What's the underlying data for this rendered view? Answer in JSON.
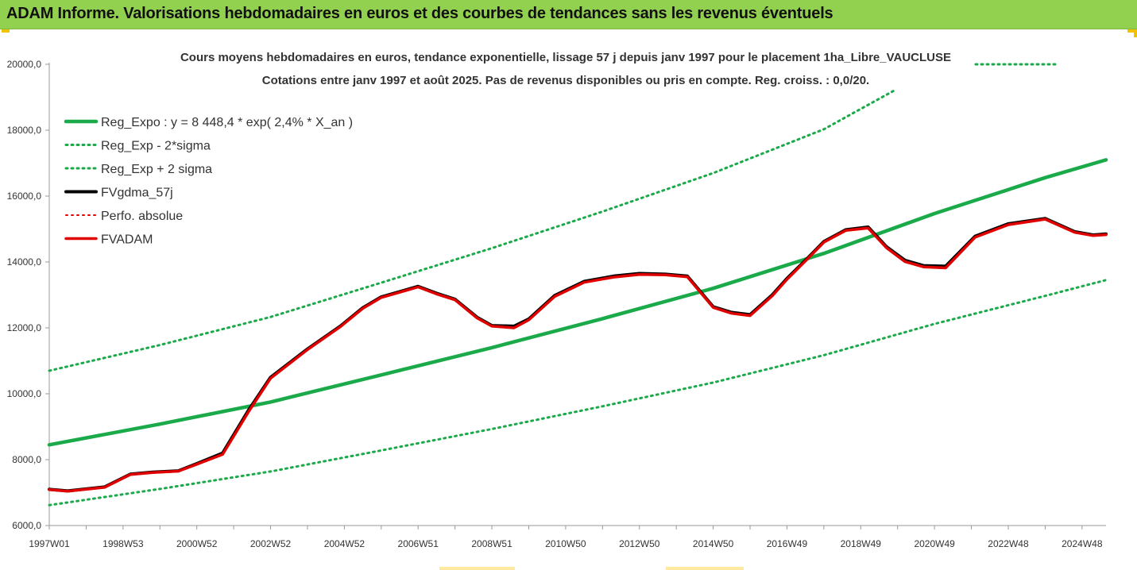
{
  "header": {
    "title": "ADAM Informe. Valorisations hebdomadaires en euros et des courbes de tendances sans les revenus éventuels"
  },
  "colors": {
    "banner": "#92d050",
    "trend": "#1aaa4a",
    "fvgdma": "#000000",
    "perfo": "#e00000",
    "fvadam": "#e00000",
    "corner_accent": "#f2c200"
  },
  "chart_data": {
    "type": "line",
    "title": "",
    "subtitle_lines": [
      "Cours moyens hebdomadaires en euros, tendance exponentielle, lissage 57 j depuis janv 1997 pour le placement 1ha_Libre_VAUCLUSE",
      "Cotations entre janv 1997 et août 2025.  Pas de revenus disponibles ou pris en compte. Reg. croiss. : 0,0/20."
    ],
    "xlabel": "",
    "ylabel": "",
    "x_range_years": [
      1997.0,
      2025.65
    ],
    "ylim": [
      6000,
      20000
    ],
    "y_ticks": [
      "6000,0",
      "8000,0",
      "10000,0",
      "12000,0",
      "14000,0",
      "16000,0",
      "18000,0",
      "20000,0"
    ],
    "y_tick_values": [
      6000,
      8000,
      10000,
      12000,
      14000,
      16000,
      18000,
      20000
    ],
    "x_ticks": [
      "1997W01",
      "1998W53",
      "2000W52",
      "2002W52",
      "2004W52",
      "2006W51",
      "2008W51",
      "2010W50",
      "2012W50",
      "2014W50",
      "2016W49",
      "2018W49",
      "2020W49",
      "2022W48",
      "2024W48"
    ],
    "x_tick_years": [
      1997.0,
      1999.0,
      2001.0,
      2003.0,
      2005.0,
      2007.0,
      2009.0,
      2011.0,
      2013.0,
      2015.0,
      2017.0,
      2019.0,
      2021.0,
      2023.0,
      2025.0
    ],
    "grid": false,
    "legend_position": "top-left",
    "legend": [
      {
        "label": "Reg_Expo : y = 8 448,4 * exp( 2,4% *  X_an )",
        "color": "#1aaa4a",
        "style": "solid"
      },
      {
        "label": "Reg_Exp - 2*sigma",
        "color": "#1aaa4a",
        "style": "dotted"
      },
      {
        "label": "Reg_Exp + 2 sigma",
        "color": "#1aaa4a",
        "style": "dotted"
      },
      {
        "label": "FVgdma_57j",
        "color": "#000000",
        "style": "solid"
      },
      {
        "label": "Perfo. absolue",
        "color": "#e00000",
        "style": "dotted"
      },
      {
        "label": "FVADAM",
        "color": "#e00000",
        "style": "solid"
      }
    ],
    "series": [
      {
        "name": "Reg_Expo : y = 8 448,4 * exp( 2,4% *  X_an )",
        "x": [
          1997.0,
          2000.0,
          2003.0,
          2006.0,
          2009.0,
          2012.0,
          2015.0,
          2018.0,
          2021.0,
          2024.0,
          2025.65
        ],
        "values": [
          8450,
          9080,
          9750,
          10570,
          11400,
          12280,
          13200,
          14260,
          15470,
          16560,
          17100
        ]
      },
      {
        "name": "Reg_Exp - 2*sigma",
        "x": [
          1997.0,
          2000.0,
          2003.0,
          2006.0,
          2009.0,
          2012.0,
          2015.0,
          2018.0,
          2021.0,
          2024.0,
          2025.65
        ],
        "values": [
          6620,
          7110,
          7640,
          8280,
          8930,
          9620,
          10340,
          11170,
          12120,
          12970,
          13450
        ]
      },
      {
        "name": "Reg_Exp + 2 sigma",
        "x": [
          1997.0,
          2000.0,
          2003.0,
          2006.0,
          2009.0,
          2012.0,
          2015.0,
          2018.0,
          2019.9
        ],
        "values": [
          10700,
          11480,
          12330,
          13370,
          14420,
          15530,
          16700,
          18030,
          19200
        ]
      },
      {
        "name": "FVgdma_57j",
        "x": [
          1997.0,
          1997.5,
          1998.5,
          1999.2,
          1999.8,
          2000.5,
          2001.0,
          2001.7,
          2002.4,
          2003.0,
          2004.0,
          2004.9,
          2005.5,
          2006.0,
          2006.5,
          2007.0,
          2007.5,
          2008.0,
          2008.6,
          2009.0,
          2009.6,
          2010.0,
          2010.7,
          2011.5,
          2012.3,
          2013.0,
          2013.7,
          2014.3,
          2015.0,
          2015.5,
          2016.0,
          2016.6,
          2017.0,
          2017.5,
          2018.0,
          2018.6,
          2019.2,
          2019.7,
          2020.2,
          2020.7,
          2021.3,
          2022.1,
          2023.0,
          2024.0,
          2024.8,
          2025.3,
          2025.65
        ],
        "values": [
          7100,
          7050,
          7170,
          7560,
          7620,
          7660,
          7880,
          8200,
          9500,
          10500,
          11360,
          12060,
          12610,
          12940,
          13100,
          13260,
          13050,
          12870,
          12320,
          12070,
          12050,
          12270,
          12980,
          13410,
          13570,
          13650,
          13630,
          13570,
          12640,
          12470,
          12400,
          13000,
          13500,
          14050,
          14620,
          14980,
          15060,
          14460,
          14050,
          13890,
          13870,
          14780,
          15160,
          15320,
          14920,
          14820,
          14850
        ]
      },
      {
        "name": "Perfo. absolue",
        "x": [
          1997.0,
          1997.5,
          1998.5,
          1999.2,
          1999.8,
          2000.5,
          2001.0,
          2001.7,
          2002.4,
          2003.0,
          2004.0,
          2004.9,
          2005.5,
          2006.0,
          2006.5,
          2007.0,
          2007.5,
          2008.0,
          2008.6,
          2009.0,
          2009.6,
          2010.0,
          2010.7,
          2011.5,
          2012.3,
          2013.0,
          2013.7,
          2014.3,
          2015.0,
          2015.5,
          2016.0,
          2016.6,
          2017.0,
          2017.5,
          2018.0,
          2018.6,
          2019.2,
          2019.7,
          2020.2,
          2020.7,
          2021.3,
          2022.1,
          2023.0,
          2024.0,
          2024.8,
          2025.3,
          2025.65
        ],
        "values": [
          7090,
          7040,
          7160,
          7550,
          7610,
          7650,
          7860,
          8160,
          9450,
          10470,
          11340,
          12040,
          12590,
          12920,
          13080,
          13240,
          13030,
          12850,
          12300,
          12050,
          12000,
          12240,
          12950,
          13380,
          13540,
          13620,
          13610,
          13550,
          12620,
          12440,
          12370,
          12970,
          13470,
          14030,
          14600,
          14960,
          15030,
          14430,
          14010,
          13850,
          13820,
          14750,
          15130,
          15300,
          14900,
          14800,
          14830
        ]
      },
      {
        "name": "FVADAM",
        "x": [
          1997.0,
          1997.5,
          1998.5,
          1999.2,
          1999.8,
          2000.5,
          2001.0,
          2001.7,
          2002.4,
          2003.0,
          2004.0,
          2004.9,
          2005.5,
          2006.0,
          2006.5,
          2007.0,
          2007.5,
          2008.0,
          2008.6,
          2009.0,
          2009.6,
          2010.0,
          2010.7,
          2011.5,
          2012.3,
          2013.0,
          2013.7,
          2014.3,
          2015.0,
          2015.5,
          2016.0,
          2016.6,
          2017.0,
          2017.5,
          2018.0,
          2018.6,
          2019.2,
          2019.7,
          2020.2,
          2020.7,
          2021.3,
          2022.1,
          2023.0,
          2024.0,
          2024.8,
          2025.3,
          2025.65
        ],
        "values": [
          7090,
          7040,
          7160,
          7550,
          7610,
          7650,
          7860,
          8160,
          9450,
          10470,
          11340,
          12040,
          12590,
          12920,
          13080,
          13240,
          13030,
          12850,
          12300,
          12050,
          12000,
          12240,
          12950,
          13380,
          13540,
          13620,
          13610,
          13550,
          12620,
          12440,
          12370,
          12970,
          13470,
          14030,
          14600,
          14960,
          15030,
          14430,
          14010,
          13850,
          13820,
          14750,
          15130,
          15300,
          14900,
          14800,
          14830
        ]
      }
    ]
  }
}
